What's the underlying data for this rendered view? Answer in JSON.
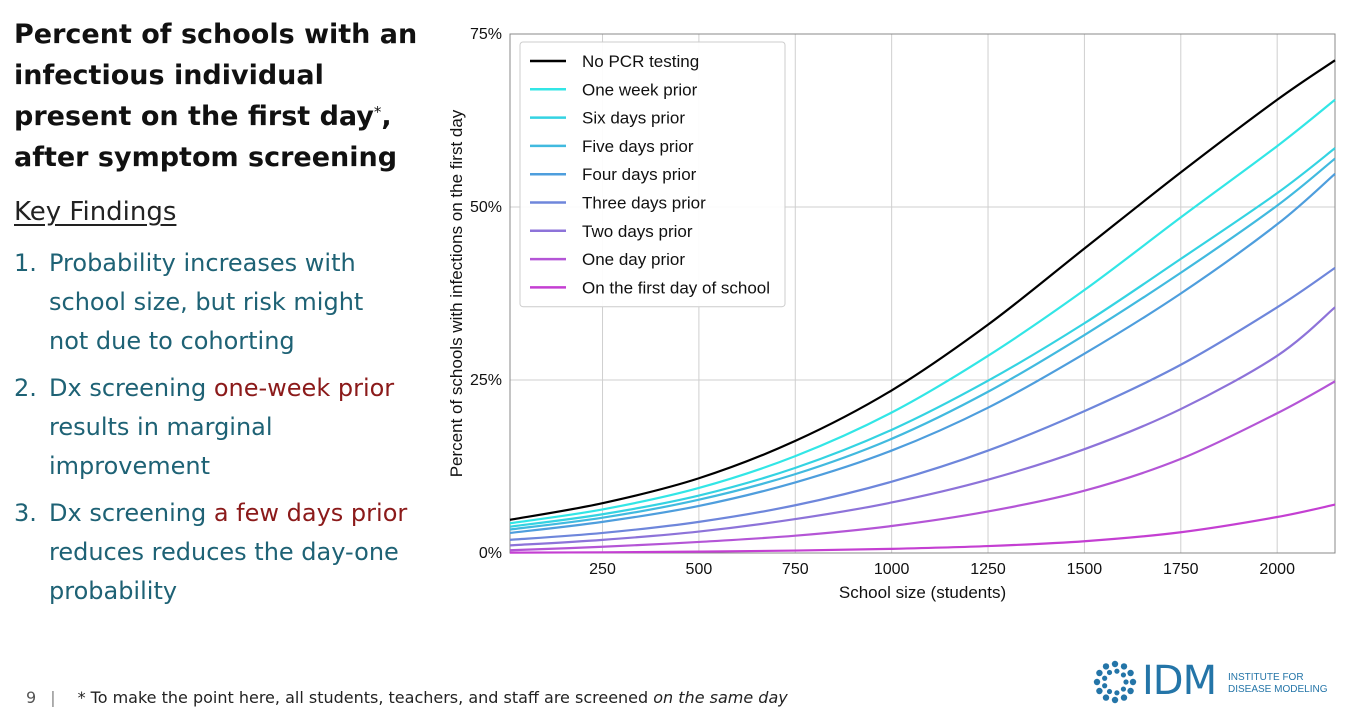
{
  "slide": {
    "title": "Percent of schools with an infectious individual present on the first day",
    "title_marker": "*",
    "title_tail": ", after symptom screening",
    "key_findings_heading": "Key Findings",
    "findings": [
      {
        "num": "1.",
        "parts": [
          {
            "text": "Probability increases with school size, but risk might not due to cohorting",
            "highlight": false
          }
        ]
      },
      {
        "num": "2.",
        "parts": [
          {
            "text": "Dx screening ",
            "highlight": false
          },
          {
            "text": "one-week prior",
            "highlight": true
          },
          {
            "text": " results in marginal improvement",
            "highlight": false
          }
        ]
      },
      {
        "num": "3.",
        "parts": [
          {
            "text": "Dx screening ",
            "highlight": false
          },
          {
            "text": "a few days prior",
            "highlight": true
          },
          {
            "text": " reduces reduces the day-one probability",
            "highlight": false
          }
        ]
      }
    ],
    "footer": {
      "page_number": "9",
      "separator": "|",
      "note_prefix": "* To make the point here, all students, teachers, and staff are screened ",
      "note_emphasis": "on the same day"
    },
    "logo": {
      "text": "IDM",
      "sub_line1": "INSTITUTE FOR",
      "sub_line2": "DISEASE MODELING",
      "icon": "gear-dots-icon"
    },
    "colors": {
      "title": "#111111",
      "findings": "#1e6275",
      "highlight": "#8b1a1a",
      "logo": "#2475a8"
    }
  },
  "chart_data": {
    "type": "line",
    "title": "",
    "xlabel": "School size (students)",
    "ylabel": "Percent of schools with infections on the first day",
    "xlim": [
      10,
      2150
    ],
    "ylim": [
      0,
      75
    ],
    "x_ticks": [
      250,
      500,
      750,
      1000,
      1250,
      1500,
      1750,
      2000
    ],
    "y_ticks": [
      0,
      25,
      50,
      75
    ],
    "y_tick_labels": [
      "0%",
      "25%",
      "50%",
      "75%"
    ],
    "grid": true,
    "legend_position": "top-left",
    "x": [
      10,
      250,
      500,
      750,
      1000,
      1250,
      1500,
      1750,
      2000,
      2150
    ],
    "series": [
      {
        "name": "No PCR testing",
        "color": "#000000",
        "values": [
          4.8,
          7.2,
          10.8,
          16.2,
          23.5,
          33.0,
          44.0,
          55.0,
          65.5,
          71.2
        ]
      },
      {
        "name": "One week prior",
        "color": "#32e6e6",
        "values": [
          4.3,
          6.3,
          9.4,
          14.0,
          20.3,
          28.5,
          38.0,
          48.5,
          58.8,
          65.5
        ]
      },
      {
        "name": "Six days prior",
        "color": "#34d3e2",
        "values": [
          3.8,
          5.6,
          8.3,
          12.3,
          17.8,
          24.9,
          33.2,
          42.5,
          52.0,
          58.5
        ]
      },
      {
        "name": "Five days prior",
        "color": "#41badf",
        "values": [
          3.4,
          5.1,
          7.7,
          11.4,
          16.5,
          23.3,
          31.5,
          40.5,
          50.2,
          57.0
        ]
      },
      {
        "name": "Four days prior",
        "color": "#4e9edd",
        "values": [
          2.9,
          4.5,
          6.8,
          10.2,
          14.8,
          21.0,
          28.8,
          37.5,
          47.5,
          54.8
        ]
      },
      {
        "name": "Three days prior",
        "color": "#6e86db",
        "values": [
          1.9,
          2.9,
          4.5,
          6.9,
          10.3,
          14.8,
          20.5,
          27.2,
          35.5,
          41.2
        ]
      },
      {
        "name": "Two days prior",
        "color": "#8d73d9",
        "values": [
          1.1,
          1.9,
          3.1,
          4.9,
          7.3,
          10.6,
          15.0,
          20.8,
          28.5,
          35.5
        ]
      },
      {
        "name": "One day prior",
        "color": "#b455d6",
        "values": [
          0.4,
          0.9,
          1.6,
          2.5,
          3.9,
          6.0,
          9.0,
          13.6,
          20.2,
          24.8
        ]
      },
      {
        "name": "On the first day of school",
        "color": "#c43fd2",
        "values": [
          0.05,
          0.1,
          0.2,
          0.35,
          0.6,
          1.0,
          1.7,
          3.0,
          5.2,
          7.0
        ]
      }
    ]
  }
}
